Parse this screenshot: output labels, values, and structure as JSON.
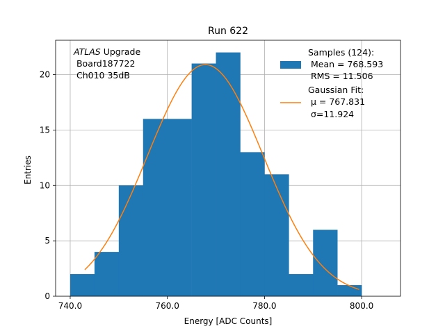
{
  "chart_data": {
    "type": "bar",
    "title": "Run 622",
    "xlabel": "Energy [ADC Counts]",
    "ylabel": "Entries",
    "xlim": [
      737,
      808
    ],
    "ylim": [
      0,
      23.1
    ],
    "grid": true,
    "x_ticks": [
      740,
      760,
      780,
      800
    ],
    "x_tick_labels": [
      "740.0",
      "760.0",
      "780.0",
      "800.0"
    ],
    "y_ticks": [
      0,
      5,
      10,
      15,
      20
    ],
    "y_tick_labels": [
      "0",
      "5",
      "10",
      "15",
      "20"
    ],
    "histogram": {
      "bin_edges": [
        740,
        745,
        750,
        755,
        760,
        765,
        770,
        775,
        780,
        785,
        790,
        795,
        800
      ],
      "counts": [
        2,
        4,
        10,
        16,
        16,
        21,
        22,
        13,
        11,
        2,
        6,
        1
      ],
      "color": "#1f77b4"
    },
    "fit": {
      "name": "Gaussian Fit:",
      "mu": 767.831,
      "sigma": 11.924,
      "amplitude": 20.9,
      "x_range": [
        743,
        799.5
      ],
      "color": "#ff7f0e"
    },
    "annotation": {
      "line1_italic": "ATLAS",
      "line1_rest": " Upgrade",
      "line2": " Board187722",
      "line3": " Ch010 35dB"
    },
    "legend": {
      "placement": "top-right",
      "samples_title": "Samples (124):",
      "samples_mean": " Mean = 768.593",
      "samples_rms": " RMS = 11.506",
      "fit_title": "Gaussian Fit:",
      "fit_mu": " μ = 767.831",
      "fit_sigma": " σ=11.924"
    }
  }
}
